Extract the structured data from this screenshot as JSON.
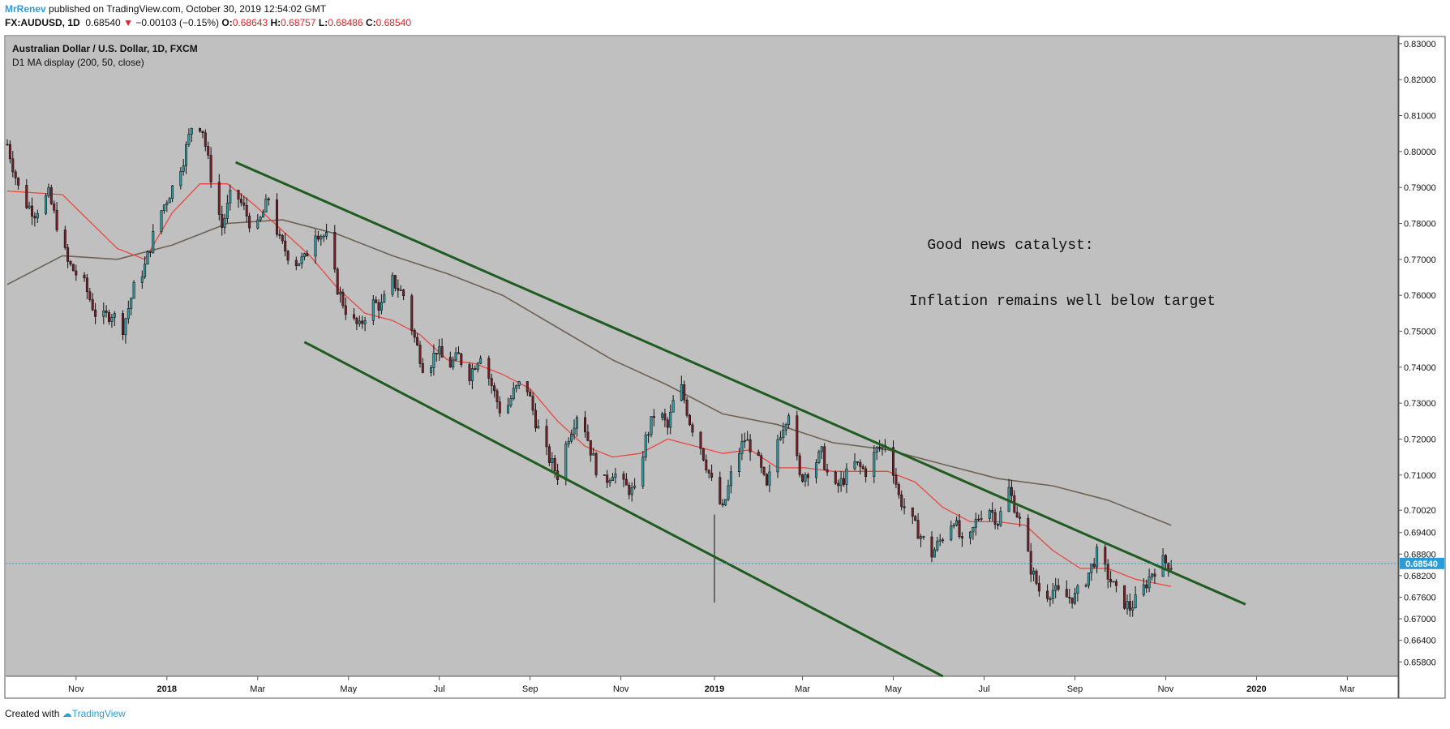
{
  "header": {
    "author": "MrRenev",
    "published": "published on TradingView.com, October 30, 2019 12:54:02 GMT"
  },
  "ohlc": {
    "symbol": "FX:AUDUSD, 1D",
    "last": "0.68540",
    "change": "−0.00103 (−0.15%)",
    "o_label": "O:",
    "o": "0.68643",
    "h_label": "H:",
    "h": "0.68757",
    "l_label": "L:",
    "l": "0.68486",
    "c_label": "C:",
    "c": "0.68540"
  },
  "footer": {
    "created_with": "Created with",
    "brand": "TradingView"
  },
  "colors": {
    "background": "#c0c0c0",
    "ma50": "#e8473f",
    "ma200": "#6d6254",
    "trendline": "#1f5c1f",
    "price_line": "#2a9dd8",
    "badge": "#2a9dd8"
  },
  "chart_data": {
    "type": "candlestick",
    "title": "Australian Dollar / U.S. Dollar, 1D, FXCM",
    "subtitle": "D1 MA display (200, 50, close)",
    "ylim": [
      0.654,
      0.832
    ],
    "y_ticks": [
      "0.83000",
      "0.82000",
      "0.81000",
      "0.80000",
      "0.79000",
      "0.78000",
      "0.77000",
      "0.76000",
      "0.75000",
      "0.74000",
      "0.73000",
      "0.72000",
      "0.71000",
      "0.70020",
      "0.69400",
      "0.68800",
      "0.68200",
      "0.67600",
      "0.67000",
      "0.66400",
      "0.65800"
    ],
    "x_ticks": [
      "Nov",
      "2018",
      "Mar",
      "May",
      "Jul",
      "Sep",
      "Nov",
      "2019",
      "Mar",
      "May",
      "Jul",
      "Sep",
      "Nov",
      "2020",
      "Mar"
    ],
    "bold_x_ticks": [
      "2018",
      "2019",
      "2020"
    ],
    "current_price": 0.6854,
    "current_price_label": "0.68540",
    "annotations": [
      "Good news catalyst:",
      "Inflation remains well below target"
    ],
    "price_path": [
      [
        0,
        0.802
      ],
      [
        5,
        0.787
      ],
      [
        10,
        0.783
      ],
      [
        15,
        0.788
      ],
      [
        22,
        0.769
      ],
      [
        28,
        0.763
      ],
      [
        33,
        0.753
      ],
      [
        38,
        0.755
      ],
      [
        42,
        0.751
      ],
      [
        46,
        0.762
      ],
      [
        50,
        0.768
      ],
      [
        55,
        0.782
      ],
      [
        60,
        0.79
      ],
      [
        64,
        0.798
      ],
      [
        68,
        0.81
      ],
      [
        71,
        0.806
      ],
      [
        74,
        0.793
      ],
      [
        78,
        0.779
      ],
      [
        82,
        0.79
      ],
      [
        86,
        0.784
      ],
      [
        90,
        0.777
      ],
      [
        95,
        0.787
      ],
      [
        99,
        0.775
      ],
      [
        104,
        0.769
      ],
      [
        108,
        0.77
      ],
      [
        112,
        0.778
      ],
      [
        116,
        0.776
      ],
      [
        120,
        0.762
      ],
      [
        124,
        0.754
      ],
      [
        128,
        0.751
      ],
      [
        132,
        0.758
      ],
      [
        136,
        0.757
      ],
      [
        140,
        0.764
      ],
      [
        144,
        0.76
      ],
      [
        148,
        0.748
      ],
      [
        152,
        0.738
      ],
      [
        156,
        0.745
      ],
      [
        160,
        0.74
      ],
      [
        164,
        0.743
      ],
      [
        168,
        0.738
      ],
      [
        172,
        0.744
      ],
      [
        176,
        0.735
      ],
      [
        180,
        0.726
      ],
      [
        184,
        0.733
      ],
      [
        188,
        0.737
      ],
      [
        192,
        0.725
      ],
      [
        196,
        0.716
      ],
      [
        200,
        0.71
      ],
      [
        204,
        0.721
      ],
      [
        208,
        0.729
      ],
      [
        212,
        0.717
      ],
      [
        216,
        0.707
      ],
      [
        220,
        0.711
      ],
      [
        224,
        0.707
      ],
      [
        228,
        0.705
      ],
      [
        232,
        0.72
      ],
      [
        236,
        0.729
      ],
      [
        240,
        0.723
      ],
      [
        244,
        0.737
      ],
      [
        248,
        0.725
      ],
      [
        252,
        0.718
      ],
      [
        256,
        0.708
      ],
      [
        260,
        0.7
      ],
      [
        264,
        0.713
      ],
      [
        268,
        0.72
      ],
      [
        272,
        0.716
      ],
      [
        276,
        0.706
      ],
      [
        280,
        0.72
      ],
      [
        284,
        0.728
      ],
      [
        288,
        0.709
      ],
      [
        292,
        0.712
      ],
      [
        296,
        0.716
      ],
      [
        300,
        0.705
      ],
      [
        304,
        0.709
      ],
      [
        308,
        0.713
      ],
      [
        312,
        0.711
      ],
      [
        316,
        0.717
      ],
      [
        320,
        0.719
      ],
      [
        324,
        0.704
      ],
      [
        328,
        0.698
      ],
      [
        332,
        0.693
      ],
      [
        336,
        0.688
      ],
      [
        340,
        0.693
      ],
      [
        344,
        0.698
      ],
      [
        348,
        0.688
      ],
      [
        352,
        0.697
      ],
      [
        356,
        0.702
      ],
      [
        360,
        0.697
      ],
      [
        364,
        0.706
      ],
      [
        368,
        0.697
      ],
      [
        372,
        0.684
      ],
      [
        376,
        0.676
      ],
      [
        380,
        0.678
      ],
      [
        384,
        0.676
      ],
      [
        388,
        0.676
      ],
      [
        392,
        0.681
      ],
      [
        396,
        0.688
      ],
      [
        400,
        0.682
      ],
      [
        404,
        0.676
      ],
      [
        408,
        0.673
      ],
      [
        412,
        0.677
      ],
      [
        416,
        0.683
      ],
      [
        420,
        0.686
      ],
      [
        423,
        0.685
      ]
    ],
    "ma50": [
      [
        0,
        0.789
      ],
      [
        20,
        0.788
      ],
      [
        40,
        0.773
      ],
      [
        50,
        0.77
      ],
      [
        60,
        0.783
      ],
      [
        70,
        0.791
      ],
      [
        80,
        0.791
      ],
      [
        90,
        0.785
      ],
      [
        100,
        0.778
      ],
      [
        110,
        0.771
      ],
      [
        120,
        0.762
      ],
      [
        130,
        0.755
      ],
      [
        140,
        0.753
      ],
      [
        150,
        0.749
      ],
      [
        160,
        0.742
      ],
      [
        170,
        0.741
      ],
      [
        180,
        0.738
      ],
      [
        190,
        0.734
      ],
      [
        200,
        0.725
      ],
      [
        210,
        0.718
      ],
      [
        220,
        0.715
      ],
      [
        230,
        0.716
      ],
      [
        240,
        0.72
      ],
      [
        250,
        0.718
      ],
      [
        260,
        0.716
      ],
      [
        270,
        0.717
      ],
      [
        280,
        0.712
      ],
      [
        290,
        0.712
      ],
      [
        300,
        0.711
      ],
      [
        310,
        0.711
      ],
      [
        320,
        0.711
      ],
      [
        330,
        0.708
      ],
      [
        340,
        0.701
      ],
      [
        350,
        0.697
      ],
      [
        360,
        0.697
      ],
      [
        370,
        0.696
      ],
      [
        380,
        0.689
      ],
      [
        390,
        0.684
      ],
      [
        400,
        0.684
      ],
      [
        410,
        0.681
      ],
      [
        423,
        0.679
      ]
    ],
    "ma200": [
      [
        0,
        0.763
      ],
      [
        20,
        0.771
      ],
      [
        40,
        0.77
      ],
      [
        60,
        0.774
      ],
      [
        80,
        0.78
      ],
      [
        100,
        0.781
      ],
      [
        120,
        0.777
      ],
      [
        140,
        0.771
      ],
      [
        160,
        0.766
      ],
      [
        180,
        0.76
      ],
      [
        200,
        0.751
      ],
      [
        220,
        0.742
      ],
      [
        240,
        0.735
      ],
      [
        260,
        0.727
      ],
      [
        280,
        0.724
      ],
      [
        300,
        0.719
      ],
      [
        320,
        0.717
      ],
      [
        340,
        0.713
      ],
      [
        360,
        0.709
      ],
      [
        380,
        0.707
      ],
      [
        400,
        0.703
      ],
      [
        423,
        0.696
      ]
    ],
    "trendlines": [
      [
        [
          83,
          0.797
        ],
        [
          450,
          0.674
        ]
      ],
      [
        [
          108,
          0.747
        ],
        [
          340,
          0.654
        ]
      ]
    ],
    "x_axis_days": {
      "tick_positions": [
        25,
        58,
        91,
        124,
        157,
        190,
        223,
        257,
        289,
        322,
        355,
        388,
        421,
        454,
        487
      ]
    }
  }
}
